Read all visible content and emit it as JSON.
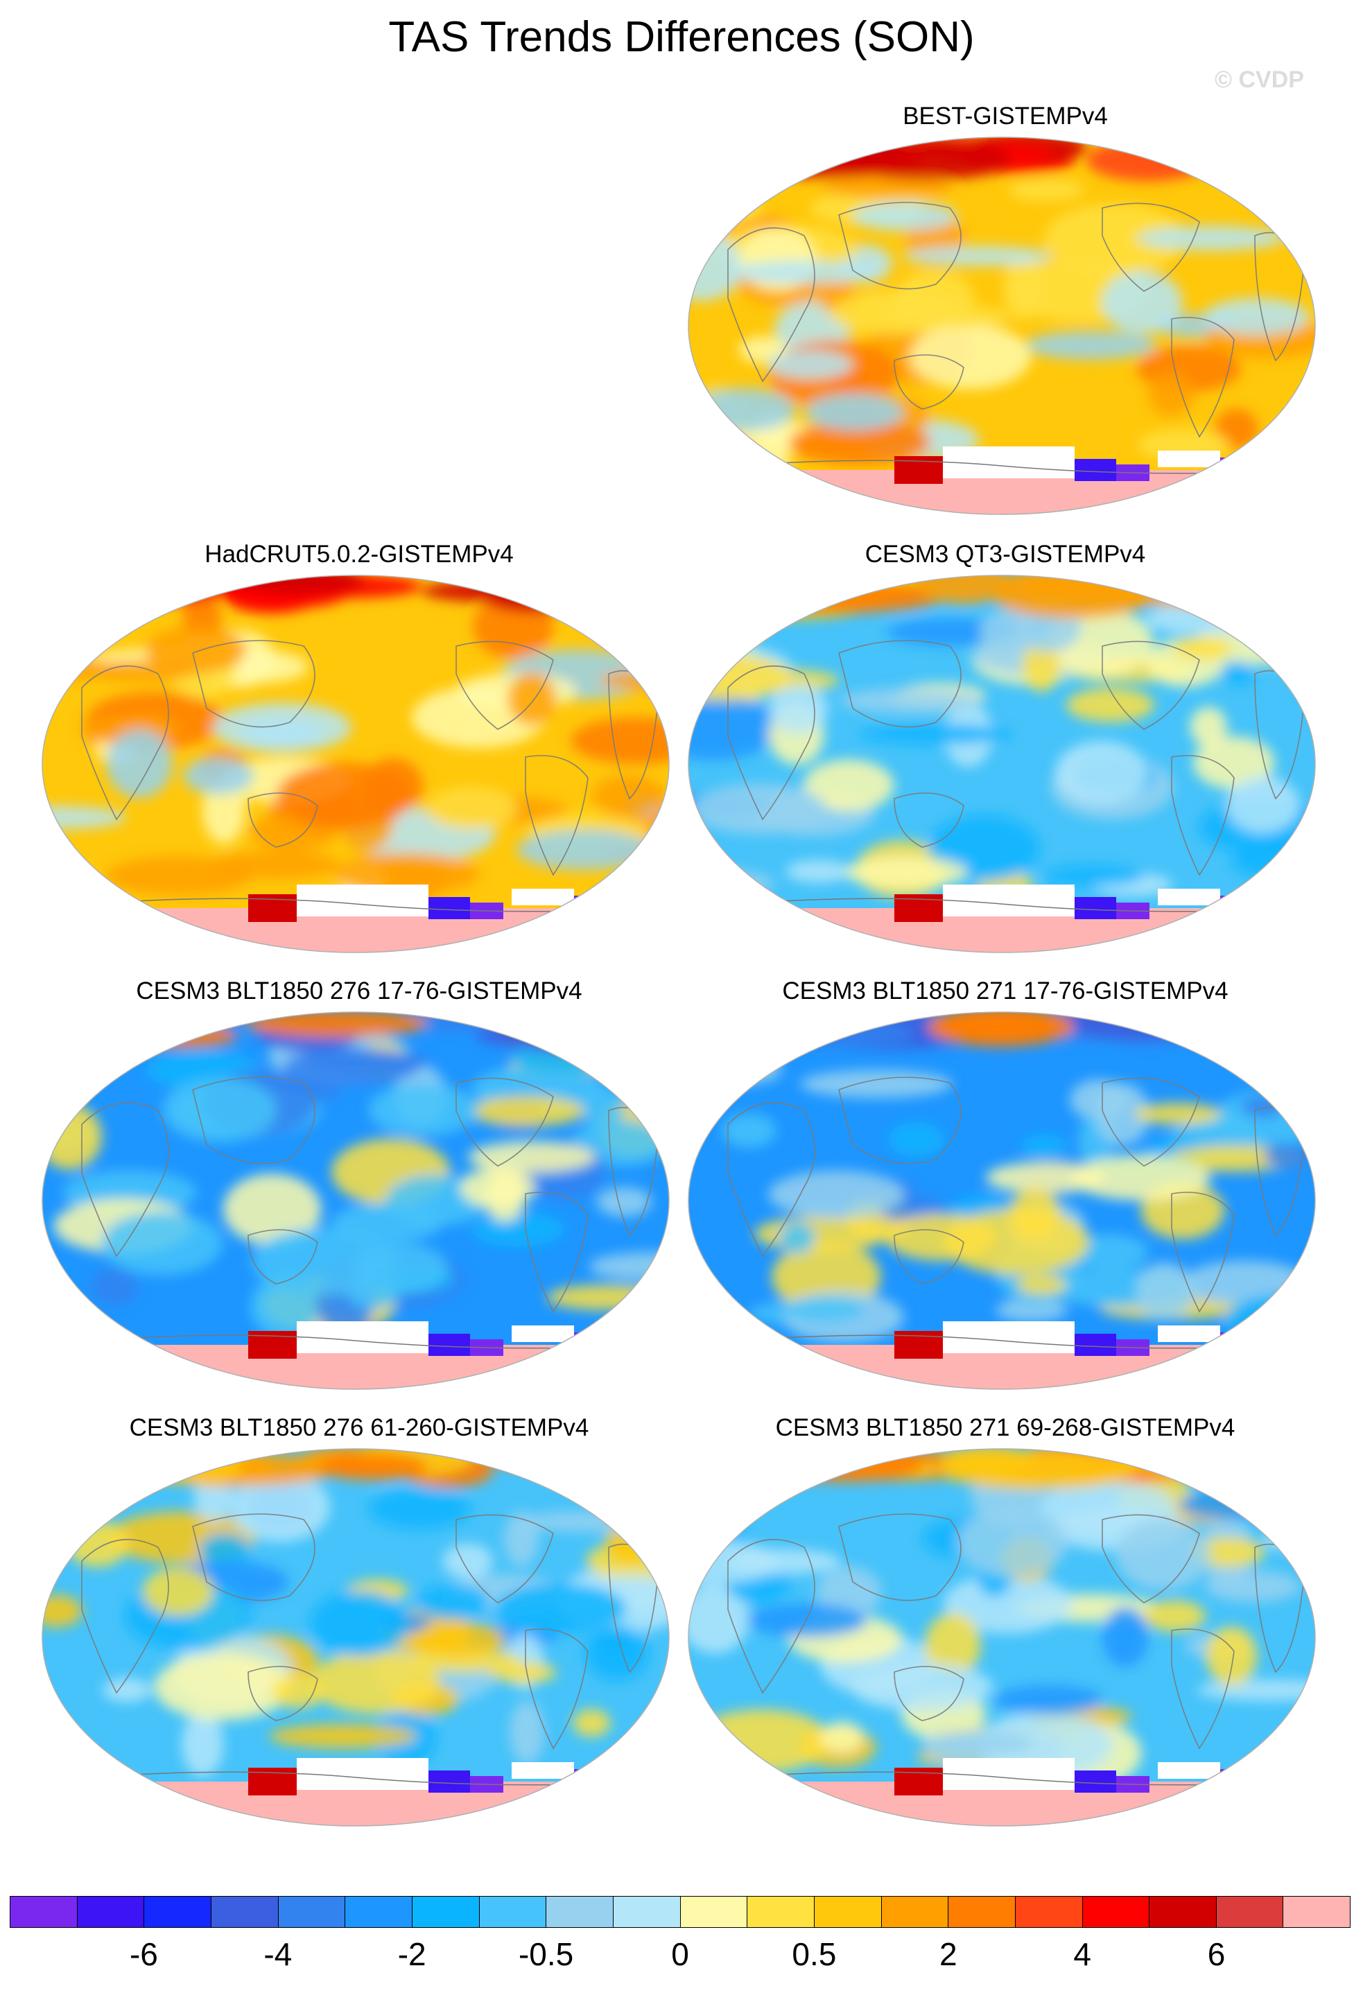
{
  "title": "TAS Trends Differences (SON)",
  "watermark": "© CVDP",
  "panels": [
    {
      "id": "best",
      "title": "BEST-GISTEMPv4",
      "scheme": "warm"
    },
    {
      "id": "hadcrut",
      "title": "HadCRUT5.0.2-GISTEMPv4",
      "scheme": "warm"
    },
    {
      "id": "qt3",
      "title": "CESM3 QT3-GISTEMPv4",
      "scheme": "cool"
    },
    {
      "id": "b276a",
      "title": "CESM3 BLT1850 276 17-76-GISTEMPv4",
      "scheme": "cool2"
    },
    {
      "id": "b271a",
      "title": "CESM3 BLT1850 271 17-76-GISTEMPv4",
      "scheme": "cool2"
    },
    {
      "id": "b276b",
      "title": "CESM3 BLT1850 276 61-260-GISTEMPv4",
      "scheme": "mixed"
    },
    {
      "id": "b271b",
      "title": "CESM3 BLT1850 271 69-268-GISTEMPv4",
      "scheme": "mixed"
    }
  ],
  "colorbar": {
    "colors": [
      "#7a28f0",
      "#3c14f5",
      "#1428ff",
      "#3c5ee0",
      "#3282f0",
      "#1e96ff",
      "#0ab4ff",
      "#46c3fa",
      "#96d2f0",
      "#b4e6fa",
      "#fffaaa",
      "#ffe141",
      "#ffc80a",
      "#ffa000",
      "#ff7d00",
      "#ff4614",
      "#ff0000",
      "#d20000",
      "#dc3c3c",
      "#ffb4b4"
    ],
    "labels": [
      {
        "text": "-6",
        "boundary": 2
      },
      {
        "text": "-4",
        "boundary": 4
      },
      {
        "text": "-2",
        "boundary": 6
      },
      {
        "text": "-0.5",
        "boundary": 8
      },
      {
        "text": "0",
        "boundary": 10
      },
      {
        "text": "0.5",
        "boundary": 12
      },
      {
        "text": "2",
        "boundary": 14
      },
      {
        "text": "4",
        "boundary": 16
      },
      {
        "text": "6",
        "boundary": 18
      }
    ]
  }
}
